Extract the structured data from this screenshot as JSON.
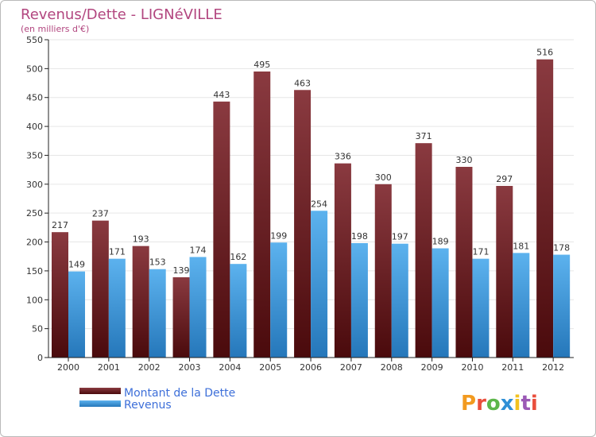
{
  "colors": {
    "debt_top": "#8a3a40",
    "debt_bottom": "#4a0a0c",
    "revenue_top": "#5cb2ee",
    "revenue_bottom": "#2577ba",
    "grid": "#e6e6e6",
    "axis": "#222222",
    "title": "#b2467f",
    "legend_text": "#3d6fd9"
  },
  "logo": {
    "text": "Proxiti"
  },
  "chart_data": {
    "type": "bar",
    "title": "Revenus/Dette - LIGNéVILLE",
    "subtitle": "(en milliers d'€)",
    "categories": [
      "2000",
      "2001",
      "2002",
      "2003",
      "2004",
      "2005",
      "2006",
      "2007",
      "2008",
      "2009",
      "2010",
      "2011",
      "2012"
    ],
    "series": [
      {
        "name": "Montant de la Dette",
        "values": [
          217,
          237,
          193,
          139,
          443,
          495,
          463,
          336,
          300,
          371,
          330,
          297,
          516
        ]
      },
      {
        "name": "Revenus",
        "values": [
          149,
          171,
          153,
          174,
          162,
          199,
          254,
          198,
          197,
          189,
          171,
          181,
          178
        ]
      }
    ],
    "ylim": [
      0,
      550
    ],
    "yticks": [
      0,
      50,
      100,
      150,
      200,
      250,
      300,
      350,
      400,
      450,
      500,
      550
    ],
    "grid": true,
    "legend_position": "bottom-left"
  }
}
